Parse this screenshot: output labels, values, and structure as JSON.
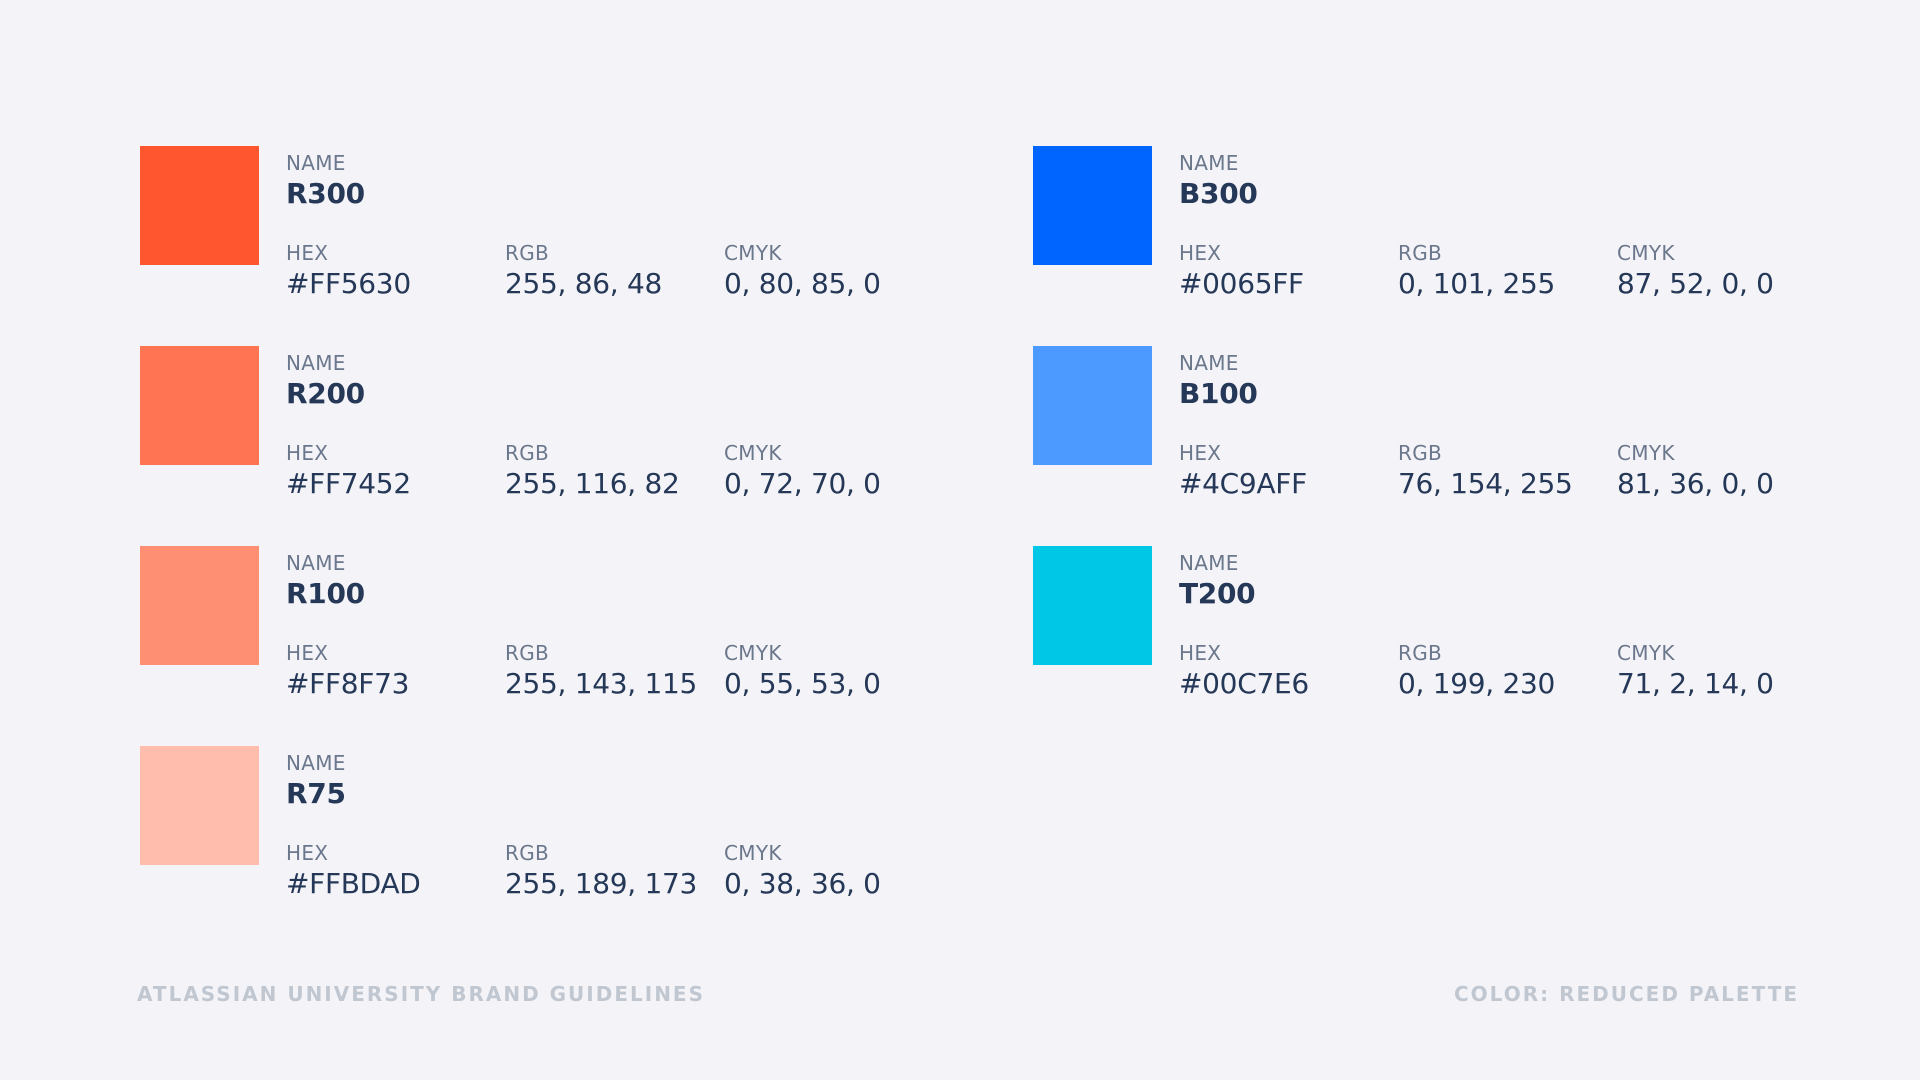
{
  "labels": {
    "name": "NAME",
    "hex": "HEX",
    "rgb": "RGB",
    "cmyk": "CMYK"
  },
  "left_colors": [
    {
      "name": "R300",
      "hex": "#FF5630",
      "rgb": "255, 86, 48",
      "cmyk": "0, 80, 85, 0",
      "swatch": "#FF5630"
    },
    {
      "name": "R200",
      "hex": "#FF7452",
      "rgb": "255, 116, 82",
      "cmyk": "0, 72, 70, 0",
      "swatch": "#FF7452"
    },
    {
      "name": "R100",
      "hex": "#FF8F73",
      "rgb": "255, 143, 115",
      "cmyk": "0, 55, 53, 0",
      "swatch": "#FF8F73"
    },
    {
      "name": "R75",
      "hex": "#FFBDAD",
      "rgb": "255, 189, 173",
      "cmyk": "0, 38, 36, 0",
      "swatch": "#FFBDAD"
    }
  ],
  "right_colors": [
    {
      "name": "B300",
      "hex": "#0065FF",
      "rgb": "0, 101, 255",
      "cmyk": "87, 52, 0, 0",
      "swatch": "#0065FF"
    },
    {
      "name": "B100",
      "hex": "#4C9AFF",
      "rgb": "76, 154, 255",
      "cmyk": "81, 36, 0, 0",
      "swatch": "#4C9AFF"
    },
    {
      "name": "T200",
      "hex": "#00C7E6",
      "rgb": "0, 199, 230",
      "cmyk": "71, 2, 14, 0",
      "swatch": "#00C7E6"
    }
  ],
  "footer": {
    "left": "ATLASSIAN UNIVERSITY BRAND GUIDELINES",
    "right": "COLOR: REDUCED PALETTE"
  }
}
